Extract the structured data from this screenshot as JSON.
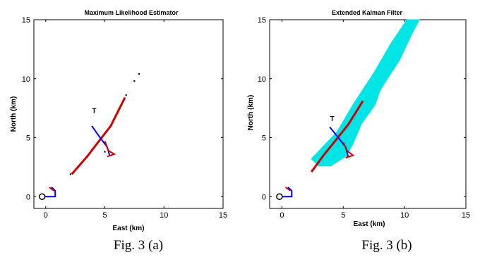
{
  "chart_data": [
    {
      "type": "scatter",
      "title": "Maximum Likelihood Estimator",
      "caption": "Fig. 3 (a)",
      "xlabel": "East (km)",
      "ylabel": "North (km)",
      "xlim": [
        -1,
        15
      ],
      "ylim": [
        -1,
        15
      ],
      "xticks": [
        0,
        5,
        10,
        15
      ],
      "yticks": [
        0,
        5,
        10,
        15
      ],
      "grid": false,
      "colors": {
        "estimate": "#d40000",
        "target_track": "#0000ff",
        "observer_track": "#0000ff",
        "observer_leg": "#d40000",
        "scatter": "#000000"
      },
      "target_label": {
        "text": "T",
        "x": 4.1,
        "y": 7.1
      },
      "observer_origin": {
        "x": -0.3,
        "y": 0
      },
      "observer_track": [
        [
          -0.3,
          0
        ],
        [
          0.8,
          0
        ],
        [
          0.8,
          0.5
        ],
        [
          0.5,
          0.8
        ]
      ],
      "observer_leg": [
        [
          0.3,
          0.8
        ],
        [
          0.7,
          0.5
        ]
      ],
      "target_track": [
        [
          3.9,
          6.0
        ],
        [
          4.6,
          5.0
        ],
        [
          5.2,
          4.2
        ],
        [
          5.4,
          3.5
        ]
      ],
      "target_leg": [
        [
          5.0,
          4.7
        ],
        [
          5.3,
          3.9
        ],
        [
          5.8,
          3.6
        ],
        [
          5.2,
          3.4
        ]
      ],
      "estimate_band": [
        [
          2.2,
          1.9
        ],
        [
          3.5,
          3.4
        ],
        [
          4.5,
          4.7
        ],
        [
          5.5,
          6.0
        ],
        [
          6.7,
          8.4
        ]
      ],
      "scatter_points": [
        [
          7.9,
          10.4
        ],
        [
          7.5,
          9.8
        ],
        [
          6.8,
          8.6
        ],
        [
          2.1,
          1.9
        ],
        [
          5.0,
          3.8
        ]
      ]
    },
    {
      "type": "area",
      "title": "Extended Kalman Filter",
      "caption": "Fig. 3 (b)",
      "xlabel": "East (km)",
      "ylabel": "North (km)",
      "xlim": [
        -1,
        15
      ],
      "ylim": [
        -1,
        15
      ],
      "xticks": [
        0,
        5,
        10,
        15
      ],
      "yticks": [
        0,
        5,
        10,
        15
      ],
      "grid": false,
      "colors": {
        "uncertainty": "#00e5e5",
        "estimate": "#d40000",
        "target_track": "#0000ff",
        "observer_track": "#0000ff",
        "observer_leg": "#d40000"
      },
      "target_label": {
        "text": "T",
        "x": 4.1,
        "y": 6.4
      },
      "observer_origin": {
        "x": -0.2,
        "y": 0
      },
      "observer_track": [
        [
          -0.2,
          0
        ],
        [
          0.8,
          0
        ],
        [
          0.8,
          0.5
        ],
        [
          0.5,
          0.8
        ]
      ],
      "observer_leg": [
        [
          0.3,
          0.8
        ],
        [
          0.7,
          0.5
        ]
      ],
      "uncertainty_region": [
        [
          2.4,
          3.2
        ],
        [
          4.5,
          5.5
        ],
        [
          5.8,
          7.8
        ],
        [
          7.5,
          10.5
        ],
        [
          8.9,
          13.0
        ],
        [
          10.2,
          15.0
        ],
        [
          11.2,
          15.0
        ],
        [
          10.6,
          13.8
        ],
        [
          9.6,
          11.6
        ],
        [
          8.6,
          10.0
        ],
        [
          8.0,
          9.0
        ],
        [
          7.6,
          7.8
        ],
        [
          6.5,
          6.2
        ],
        [
          5.8,
          4.5
        ],
        [
          5.3,
          3.5
        ],
        [
          4.0,
          2.6
        ],
        [
          3.0,
          2.6
        ]
      ],
      "estimate_band": [
        [
          2.4,
          2.1
        ],
        [
          3.4,
          3.5
        ],
        [
          4.4,
          4.8
        ],
        [
          5.4,
          6.1
        ],
        [
          6.6,
          8.1
        ]
      ],
      "target_track": [
        [
          3.9,
          5.9
        ],
        [
          4.6,
          5.0
        ],
        [
          5.2,
          4.2
        ],
        [
          5.4,
          3.4
        ]
      ],
      "target_leg": [
        [
          5.0,
          4.6
        ],
        [
          5.3,
          3.9
        ],
        [
          5.8,
          3.5
        ],
        [
          5.2,
          3.3
        ]
      ]
    }
  ]
}
